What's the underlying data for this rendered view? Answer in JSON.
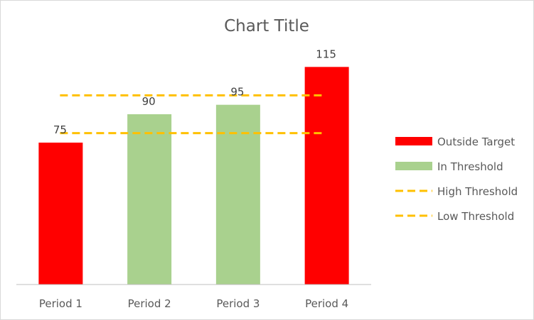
{
  "chart_data": {
    "type": "bar",
    "title": "Chart Title",
    "categories": [
      "Period 1",
      "Period 2",
      "Period 3",
      "Period 4"
    ],
    "values": [
      75,
      90,
      95,
      115
    ],
    "bar_series": [
      "Outside Target",
      "In Threshold",
      "In Threshold",
      "Outside Target"
    ],
    "series": [
      {
        "name": "Outside Target",
        "values": [
          75,
          null,
          null,
          115
        ],
        "color": "#ff0000"
      },
      {
        "name": "In Threshold",
        "values": [
          null,
          90,
          95,
          null
        ],
        "color": "#a9d18e"
      }
    ],
    "lines": [
      {
        "name": "High Threshold",
        "value": 100,
        "color": "#ffc000",
        "style": "dashed"
      },
      {
        "name": "Low Threshold",
        "value": 80,
        "color": "#ffc000",
        "style": "dashed"
      }
    ],
    "data_labels": [
      "75",
      "90",
      "95",
      "115"
    ],
    "legend": [
      "Outside Target",
      "In Threshold",
      "High Threshold",
      "Low Threshold"
    ],
    "legend_position": "right",
    "ylim": [
      0,
      120
    ],
    "grid": false,
    "xlabel": "",
    "ylabel": ""
  }
}
